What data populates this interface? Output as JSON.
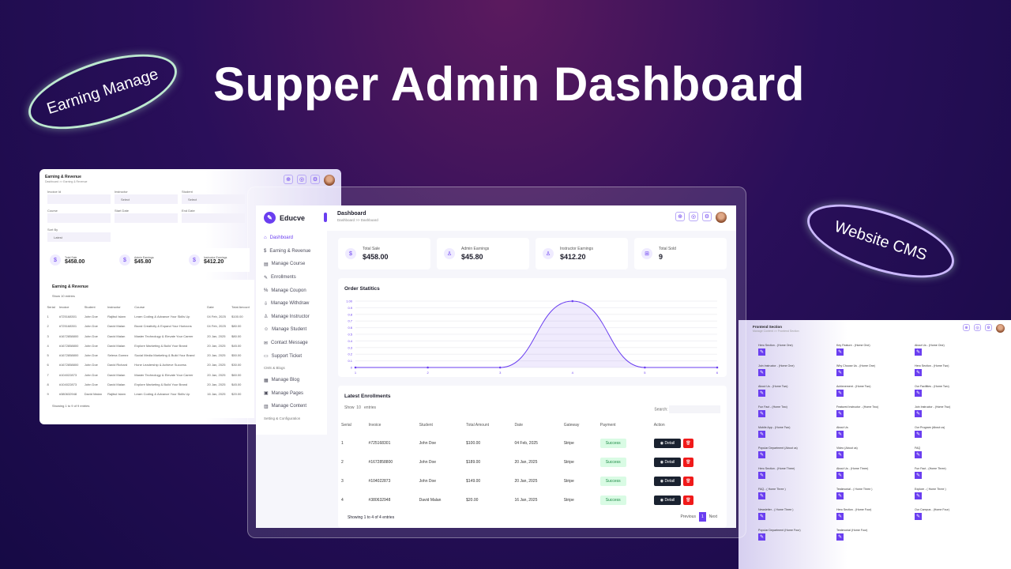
{
  "hero": {
    "title": "Supper Admin Dashboard",
    "bubble_left": "Earning Manage",
    "bubble_right": "Website CMS"
  },
  "colors": {
    "accent": "#6a3ef0",
    "success_bg": "#d9fbe4",
    "delete": "#f01a1a"
  },
  "brand": "Educve",
  "sidebar": {
    "items": [
      {
        "label": "Dashboard",
        "icon": "home-icon",
        "active": true
      },
      {
        "label": "Earning & Revenue",
        "icon": "money-bag-icon"
      },
      {
        "label": "Manage Course",
        "icon": "course-icon"
      },
      {
        "label": "Enrollments",
        "icon": "enroll-icon"
      },
      {
        "label": "Manage Coupon",
        "icon": "coupon-icon"
      },
      {
        "label": "Manage Withdraw",
        "icon": "withdraw-icon"
      },
      {
        "label": "Manage Instructor",
        "icon": "instructor-icon"
      },
      {
        "label": "Manage Student",
        "icon": "student-icon"
      },
      {
        "label": "Contact Message",
        "icon": "message-icon"
      },
      {
        "label": "Support Ticket",
        "icon": "ticket-icon"
      }
    ],
    "section_cms": "CMS & Blogs",
    "cms_items": [
      {
        "label": "Manage Blog",
        "icon": "blog-icon"
      },
      {
        "label": "Manage Pages",
        "icon": "pages-icon"
      },
      {
        "label": "Manage Content",
        "icon": "content-icon"
      }
    ],
    "section_settings": "Setting & Configuration"
  },
  "header": {
    "title": "Dashboard",
    "breadcrumb": "Dashboard >> Dashboard"
  },
  "stats": [
    {
      "label": "Total Sale",
      "value": "$458.00",
      "icon": "money-bag-icon"
    },
    {
      "label": "Admin Earnings",
      "value": "$45.80",
      "icon": "user-icon"
    },
    {
      "label": "Instructor Earnings",
      "value": "$412.20",
      "icon": "instructor-icon"
    },
    {
      "label": "Total Sold",
      "value": "9",
      "icon": "cart-icon"
    }
  ],
  "chart_data": {
    "type": "area",
    "title": "Order Statitics",
    "x": [
      1,
      2,
      3,
      4,
      5,
      6
    ],
    "values": [
      0,
      0,
      0,
      1,
      0,
      0
    ],
    "ylim": [
      0,
      1
    ],
    "yticks": [
      "0",
      "0.1",
      "0.2",
      "0.3",
      "0.4",
      "0.5",
      "0.6",
      "0.7",
      "0.8",
      "0.9",
      "1.00"
    ],
    "grid": true,
    "color": "#6a3ef0"
  },
  "enrollments": {
    "title": "Latest Enrollments",
    "show_label": "Show",
    "show_value": "10",
    "entries_label": "entries",
    "search_label": "Search:",
    "columns": [
      "Serial",
      "Invoice",
      "Student",
      "Total Amount",
      "Date",
      "Gateway",
      "Payment",
      "Action"
    ],
    "rows": [
      [
        "1",
        "#725168301",
        "John Doe",
        "$100.00",
        "04 Feb, 2025",
        "Stripe",
        "Success"
      ],
      [
        "2",
        "#1672858800",
        "John Doe",
        "$189.00",
        "20 Jan, 2025",
        "Stripe",
        "Success"
      ],
      [
        "3",
        "#104022873",
        "John Doe",
        "$149.00",
        "20 Jan, 2025",
        "Stripe",
        "Success"
      ],
      [
        "4",
        "#380632948",
        "David Malan",
        "$20.00",
        "16 Jan, 2025",
        "Stripe",
        "Success"
      ]
    ],
    "detail_label": "Detail",
    "footer": "Showing 1 to 4 of 4 entries",
    "prev": "Previous",
    "page": "1",
    "next": "Next"
  },
  "earning_panel": {
    "title": "Earning & Revenue",
    "breadcrumb": "Dashboard >> Earning & Revenue",
    "filters": [
      {
        "label": "Invoice Id",
        "value": ""
      },
      {
        "label": "Instructor",
        "value": "Select"
      },
      {
        "label": "Student",
        "value": "Select"
      },
      {
        "label": "Course",
        "value": ""
      },
      {
        "label": "Start Date",
        "value": ""
      },
      {
        "label": "End Date",
        "value": ""
      },
      {
        "label": "Sort By",
        "value": "Latest"
      }
    ],
    "stats": [
      {
        "label": "Total Sale",
        "value": "$458.00"
      },
      {
        "label": "Admin Earnings",
        "value": "$45.80"
      },
      {
        "label": "Instructor Earnings",
        "value": "$412.20"
      }
    ],
    "table_title": "Earning & Revenue",
    "show_label": "Show",
    "show_value": "10",
    "entries_label": "entries",
    "columns": [
      "Serial",
      "Invoice",
      "Student",
      "Instructor",
      "Course",
      "Date",
      "Total Amount"
    ],
    "rows": [
      [
        "1",
        "#725168301",
        "John Doe",
        "Rajibul Islam",
        "Learn Coding & Advance Your Skills Up",
        "04 Feb, 2025",
        "$100.00"
      ],
      [
        "2",
        "#725168301",
        "John Doe",
        "David Malan",
        "Boost Creativity & Expand Your Horizons",
        "04 Feb, 2025",
        "$80.00"
      ],
      [
        "3",
        "#1672858800",
        "John Doe",
        "David Malan",
        "Master Technology & Elevate Your Career",
        "20 Jan, 2025",
        "$80.00"
      ],
      [
        "4",
        "#1672858800",
        "John Doe",
        "David Malan",
        "Explore Marketing & Build Your Brand",
        "20 Jan, 2025",
        "$45.00"
      ],
      [
        "5",
        "#1672858800",
        "John Doe",
        "Selena Gomez",
        "Social Media Marketing & Build Your Brand",
        "20 Jan, 2025",
        "$50.00"
      ],
      [
        "6",
        "#1672858800",
        "John Doe",
        "David Richard",
        "Hone Leadership & Achieve Success",
        "20 Jan, 2025",
        "$30.00"
      ],
      [
        "7",
        "#104022873",
        "John Doe",
        "David Malan",
        "Master Technology & Elevate Your Career",
        "20 Jan, 2025",
        "$60.00"
      ],
      [
        "8",
        "#104022873",
        "John Doe",
        "David Malan",
        "Explore Marketing & Build Your Brand",
        "20 Jan, 2025",
        "$45.00"
      ],
      [
        "9",
        "#380632948",
        "David Malan",
        "Rajibul Islam",
        "Learn Coding & Advance Your Skills Up",
        "16 Jan, 2025",
        "$20.00"
      ]
    ],
    "footer": "Showing 1 to 9 of 9 entries"
  },
  "cms_panel": {
    "title": "Frontend Section",
    "breadcrumb": "Manage Content >> Frontend Section",
    "items": [
      "Hero Section - (Home One)",
      "Key Feature - (Home One)",
      "About Us - (Home One)",
      "Join Instructor - (Home One)",
      "Why Choose Us - (Home One)",
      "Hero Section - (Home Two)",
      "About Us - (Home Two)",
      "Achievement - (Home Two)",
      "Our Facilities - (Home Two)",
      "Fun Fact - (Home Two)",
      "Featured Instructor - (Home Two)",
      "Join Instructor - (Home Two)",
      "Mobile App - (Home Two)",
      "About Us",
      "Our Program (About us)",
      "Popular Department (About us)",
      "Video (About us)",
      "FAQ",
      "Hero Section - (Home Three)",
      "About Us - (Home Three)",
      "Fun Fact - (Home Three)",
      "FAQ - ( Home Three )",
      "Testimonial - ( Home Three )",
      "Explore - ( Home Three )",
      "Newsletter - ( Home Three )",
      "Hero Section - (Home Four)",
      "Our Campus - (Home Four)",
      "Popular Department (Home Four)",
      "Testimonial (Home Four)"
    ]
  }
}
